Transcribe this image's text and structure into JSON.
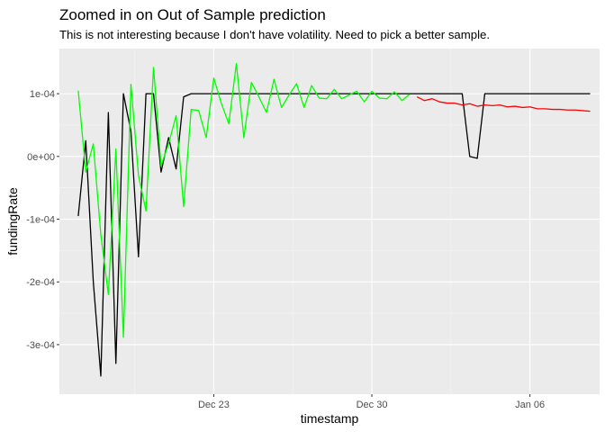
{
  "chart_data": {
    "type": "line",
    "title": "Zoomed in on Out of Sample prediction",
    "subtitle": "This is not interesting because I don't have volatility. Need to pick a better sample.",
    "xlabel": "timestamp",
    "ylabel": "fundingRate",
    "x_type": "date",
    "xlim": [
      "2022-12-16T04:00",
      "2023-01-09T02:00"
    ],
    "ylim": [
      -0.000379,
      0.0001719
    ],
    "x_ticks": [
      {
        "value": "2022-12-23",
        "label": "Dec 23"
      },
      {
        "value": "2022-12-30",
        "label": "Dec 30"
      },
      {
        "value": "2023-01-06",
        "label": "Jan 06"
      }
    ],
    "y_ticks": [
      {
        "value": 0.0001,
        "label": "1e-04"
      },
      {
        "value": 0,
        "label": "0e+00"
      },
      {
        "value": -0.0001,
        "label": "-1e-04"
      },
      {
        "value": -0.0002,
        "label": "-2e-04"
      },
      {
        "value": -0.0003,
        "label": "-3e-04"
      }
    ],
    "grid": true,
    "legend": "none",
    "series": [
      {
        "color": "#000000",
        "points": [
          [
            "2022-12-17T00:00",
            -9.5e-05
          ],
          [
            "2022-12-17T08:00",
            2.5e-05
          ],
          [
            "2022-12-17T16:00",
            -0.0002
          ],
          [
            "2022-12-18T00:00",
            -0.00035
          ],
          [
            "2022-12-18T08:00",
            7e-05
          ],
          [
            "2022-12-18T16:00",
            -0.00033
          ],
          [
            "2022-12-19T00:00",
            0.0001
          ],
          [
            "2022-12-19T08:00",
            4e-05
          ],
          [
            "2022-12-19T16:00",
            -0.00016
          ],
          [
            "2022-12-20T00:00",
            0.0001
          ],
          [
            "2022-12-20T08:00",
            0.0001
          ],
          [
            "2022-12-20T16:00",
            -2.5e-05
          ],
          [
            "2022-12-21T00:00",
            3e-05
          ],
          [
            "2022-12-21T08:00",
            -2e-05
          ],
          [
            "2022-12-21T16:00",
            9.5e-05
          ],
          [
            "2022-12-22T00:00",
            0.0001
          ],
          [
            "2022-12-22T16:00",
            0.0001
          ],
          [
            "2023-01-02T16:00",
            0.0001
          ],
          [
            "2023-01-03T00:00",
            0.0001
          ],
          [
            "2023-01-03T08:00",
            0.0
          ],
          [
            "2023-01-03T16:00",
            -3e-06
          ],
          [
            "2023-01-04T00:00",
            0.0001
          ],
          [
            "2023-01-04T08:00",
            0.0001
          ],
          [
            "2023-01-08T16:00",
            0.0001
          ]
        ]
      },
      {
        "color": "#00ff00",
        "points": [
          [
            "2022-12-17T00:00",
            0.000105
          ],
          [
            "2022-12-17T08:00",
            -2.5e-05
          ],
          [
            "2022-12-17T16:00",
            2e-05
          ],
          [
            "2022-12-18T00:00",
            -0.000125
          ],
          [
            "2022-12-18T08:00",
            -0.00022
          ],
          [
            "2022-12-18T16:00",
            1.2e-05
          ],
          [
            "2022-12-19T00:00",
            -0.000288
          ],
          [
            "2022-12-19T08:00",
            0.000115
          ],
          [
            "2022-12-19T16:00",
            -3e-05
          ],
          [
            "2022-12-20T00:00",
            -8.7e-05
          ],
          [
            "2022-12-20T08:00",
            0.000142
          ],
          [
            "2022-12-20T16:00",
            -1.5e-05
          ],
          [
            "2022-12-21T00:00",
            2e-05
          ],
          [
            "2022-12-21T08:00",
            6.5e-05
          ],
          [
            "2022-12-21T16:00",
            -8e-05
          ],
          [
            "2022-12-22T00:00",
            7.5e-05
          ],
          [
            "2022-12-22T08:00",
            7.3e-05
          ],
          [
            "2022-12-22T16:00",
            3e-05
          ],
          [
            "2022-12-23T00:00",
            0.000125
          ],
          [
            "2022-12-23T08:00",
            8.5e-05
          ],
          [
            "2022-12-23T16:00",
            5.2e-05
          ],
          [
            "2022-12-24T00:00",
            0.000148
          ],
          [
            "2022-12-24T08:00",
            3e-05
          ],
          [
            "2022-12-24T16:00",
            0.000118
          ],
          [
            "2022-12-25T00:00",
            9.5e-05
          ],
          [
            "2022-12-25T08:00",
            7e-05
          ],
          [
            "2022-12-25T16:00",
            0.000123
          ],
          [
            "2022-12-26T00:00",
            7.8e-05
          ],
          [
            "2022-12-26T08:00",
            9.8e-05
          ],
          [
            "2022-12-26T16:00",
            0.000116
          ],
          [
            "2022-12-27T00:00",
            7.8e-05
          ],
          [
            "2022-12-27T08:00",
            0.000113
          ],
          [
            "2022-12-27T16:00",
            9.3e-05
          ],
          [
            "2022-12-28T00:00",
            9.2e-05
          ],
          [
            "2022-12-28T08:00",
            0.000107
          ],
          [
            "2022-12-28T16:00",
            9.2e-05
          ],
          [
            "2022-12-29T00:00",
            9.8e-05
          ],
          [
            "2022-12-29T08:00",
            0.000104
          ],
          [
            "2022-12-29T16:00",
            8.7e-05
          ],
          [
            "2022-12-30T00:00",
            0.000104
          ],
          [
            "2022-12-30T08:00",
            9.3e-05
          ],
          [
            "2022-12-30T16:00",
            9.2e-05
          ],
          [
            "2022-12-31T00:00",
            0.000103
          ],
          [
            "2022-12-31T08:00",
            8.9e-05
          ],
          [
            "2022-12-31T16:00",
            9.9e-05
          ]
        ]
      },
      {
        "color": "#ff0000",
        "points": [
          [
            "2023-01-01T00:00",
            9.5e-05
          ],
          [
            "2023-01-01T08:00",
            8.9e-05
          ],
          [
            "2023-01-01T16:00",
            9.2e-05
          ],
          [
            "2023-01-02T00:00",
            8.7e-05
          ],
          [
            "2023-01-02T08:00",
            8.5e-05
          ],
          [
            "2023-01-02T16:00",
            8.5e-05
          ],
          [
            "2023-01-03T00:00",
            8.2e-05
          ],
          [
            "2023-01-03T08:00",
            8.4e-05
          ],
          [
            "2023-01-03T16:00",
            8e-05
          ],
          [
            "2023-01-04T00:00",
            8.2e-05
          ],
          [
            "2023-01-04T08:00",
            8.1e-05
          ],
          [
            "2023-01-04T16:00",
            8.2e-05
          ],
          [
            "2023-01-05T00:00",
            7.9e-05
          ],
          [
            "2023-01-05T08:00",
            8e-05
          ],
          [
            "2023-01-05T16:00",
            7.8e-05
          ],
          [
            "2023-01-06T00:00",
            7.9e-05
          ],
          [
            "2023-01-06T08:00",
            7.6e-05
          ],
          [
            "2023-01-06T16:00",
            7.6e-05
          ],
          [
            "2023-01-07T00:00",
            7.5e-05
          ],
          [
            "2023-01-07T08:00",
            7.5e-05
          ],
          [
            "2023-01-07T16:00",
            7.4e-05
          ],
          [
            "2023-01-08T00:00",
            7.4e-05
          ],
          [
            "2023-01-08T08:00",
            7.3e-05
          ],
          [
            "2023-01-08T16:00",
            7.2e-05
          ]
        ]
      }
    ]
  }
}
